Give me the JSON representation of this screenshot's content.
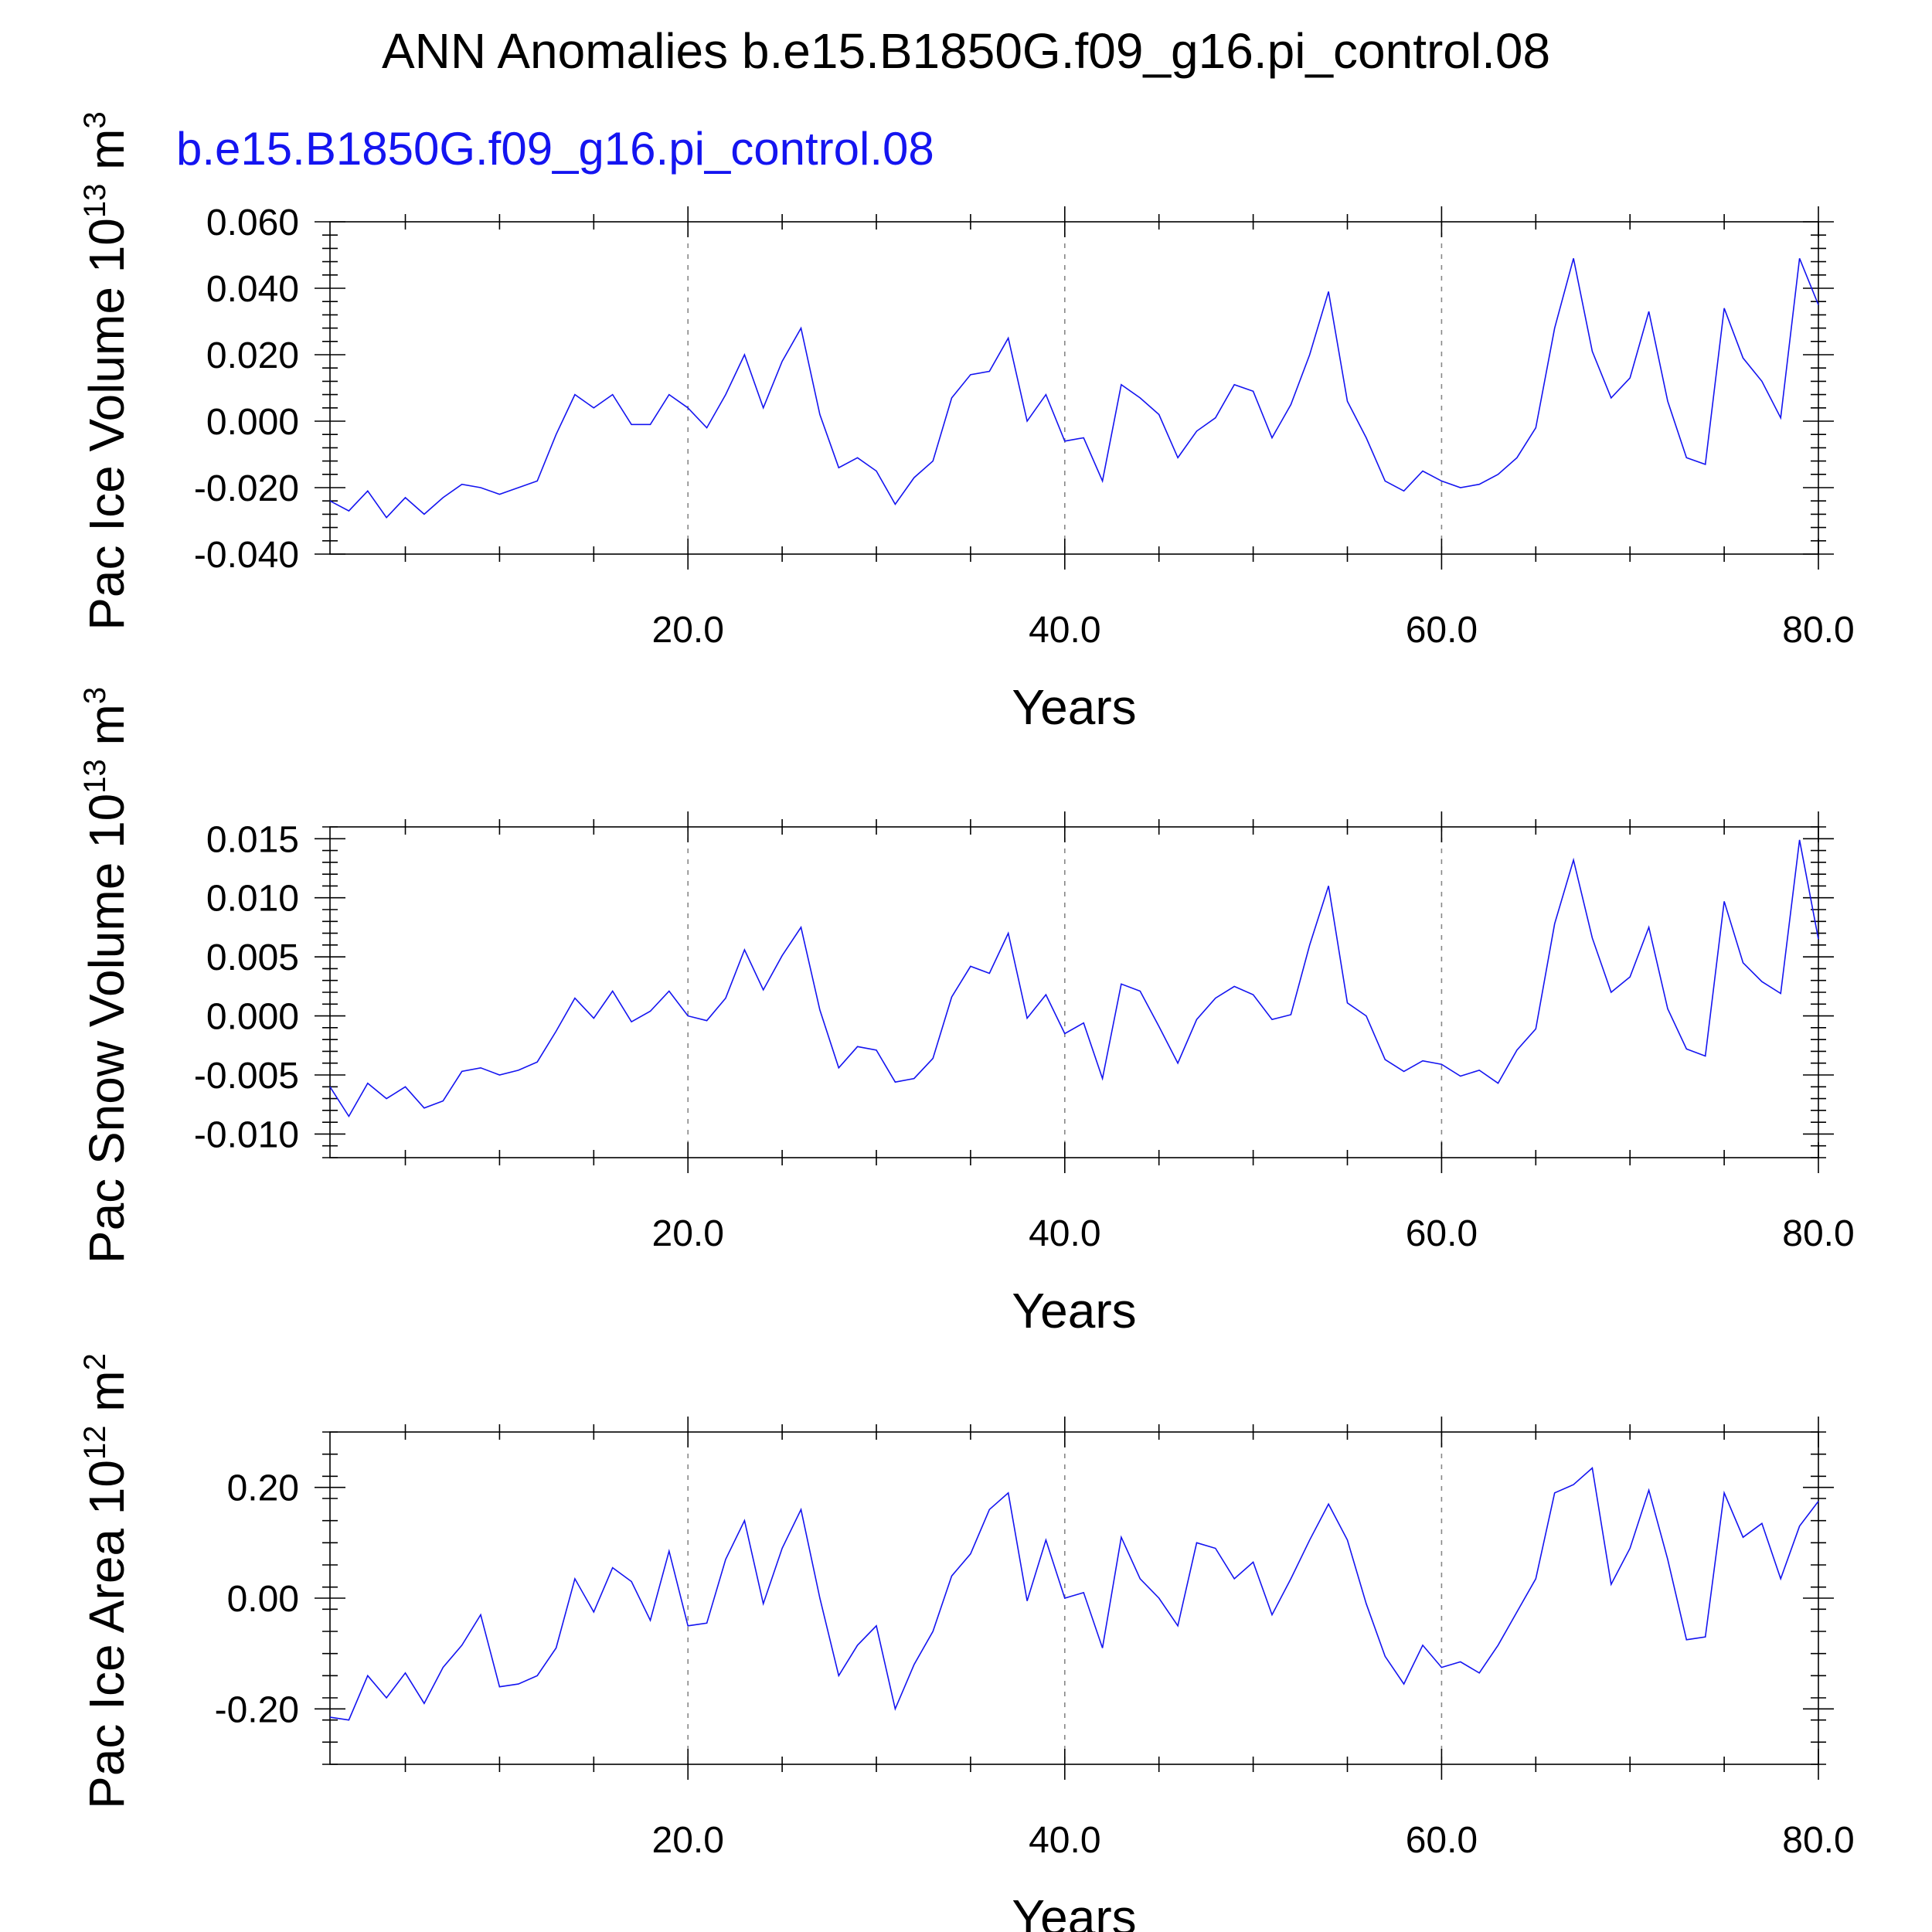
{
  "title": "ANN Anomalies b.e15.B1850G.f09_g16.pi_control.08",
  "subtitle": "b.e15.B1850G.f09_g16.pi_control.08",
  "colors": {
    "series": "#1414f0",
    "subtitle": "#1414f0",
    "axes": "#000000",
    "grid": "#888888"
  },
  "chart_data": [
    {
      "type": "line",
      "ylabel": "Pac Ice Volume 10",
      "ylabel_exp": "13",
      "ylabel_unit": " m",
      "ylabel_unit_exp": "3",
      "xlabel": "Years",
      "xlim": [
        1,
        80
      ],
      "ylim": [
        -0.04,
        0.06
      ],
      "x_ticks": [
        20,
        40,
        60,
        80
      ],
      "x_tick_labels": [
        "20.0",
        "40.0",
        "60.0",
        "80.0"
      ],
      "y_ticks": [
        -0.04,
        -0.02,
        0.0,
        0.02,
        0.04,
        0.06
      ],
      "y_tick_labels": [
        "-0.040",
        "-0.020",
        "0.000",
        "0.020",
        "0.040",
        "0.060"
      ],
      "grid_x": [
        20,
        40,
        60
      ],
      "series": [
        {
          "x_start": 1,
          "values": [
            -0.024,
            -0.027,
            -0.021,
            -0.029,
            -0.023,
            -0.028,
            -0.023,
            -0.019,
            -0.02,
            -0.022,
            -0.02,
            -0.018,
            -0.004,
            0.008,
            0.004,
            0.008,
            -0.001,
            -0.001,
            0.008,
            0.004,
            -0.002,
            0.008,
            0.02,
            0.004,
            0.018,
            0.028,
            0.002,
            -0.014,
            -0.011,
            -0.015,
            -0.025,
            -0.017,
            -0.012,
            0.007,
            0.014,
            0.015,
            0.025,
            0.0,
            0.008,
            -0.006,
            -0.005,
            -0.018,
            0.011,
            0.007,
            0.002,
            -0.011,
            -0.003,
            0.001,
            0.011,
            0.009,
            -0.005,
            0.005,
            0.02,
            0.039,
            0.006,
            -0.005,
            -0.018,
            -0.021,
            -0.015,
            -0.018,
            -0.02,
            -0.019,
            -0.016,
            -0.011,
            -0.002,
            0.028,
            0.049,
            0.021,
            0.007,
            0.013,
            0.033,
            0.006,
            -0.011,
            -0.013,
            0.034,
            0.019,
            0.012,
            0.001,
            0.049,
            0.035
          ]
        }
      ]
    },
    {
      "type": "line",
      "ylabel": "Pac Snow Volume 10",
      "ylabel_exp": "13",
      "ylabel_unit": " m",
      "ylabel_unit_exp": "3",
      "xlabel": "Years",
      "xlim": [
        1,
        80
      ],
      "ylim": [
        -0.012,
        0.016
      ],
      "x_ticks": [
        20,
        40,
        60,
        80
      ],
      "x_tick_labels": [
        "20.0",
        "40.0",
        "60.0",
        "80.0"
      ],
      "y_ticks": [
        -0.01,
        -0.005,
        0.0,
        0.005,
        0.01,
        0.015
      ],
      "y_tick_labels": [
        "-0.010",
        "-0.005",
        "0.000",
        "0.005",
        "0.010",
        "0.015"
      ],
      "grid_x": [
        20,
        40,
        60
      ],
      "series": [
        {
          "x_start": 1,
          "values": [
            -0.006,
            -0.0085,
            -0.0057,
            -0.007,
            -0.006,
            -0.0078,
            -0.0072,
            -0.0047,
            -0.0044,
            -0.005,
            -0.0046,
            -0.0039,
            -0.0013,
            0.0015,
            -0.0002,
            0.0021,
            -0.0005,
            0.0004,
            0.0021,
            0.0,
            -0.0004,
            0.0015,
            0.0056,
            0.0022,
            0.0051,
            0.0075,
            0.0005,
            -0.0044,
            -0.0026,
            -0.0029,
            -0.0056,
            -0.0053,
            -0.0036,
            0.0016,
            0.0042,
            0.0036,
            0.007,
            -0.0002,
            0.0018,
            -0.0015,
            -0.0006,
            -0.0053,
            0.0027,
            0.0021,
            -0.0009,
            -0.004,
            -0.0003,
            0.0015,
            0.0025,
            0.0018,
            -0.0003,
            0.0001,
            0.006,
            0.011,
            0.0011,
            0.0,
            -0.0037,
            -0.0047,
            -0.0038,
            -0.0041,
            -0.0051,
            -0.0046,
            -0.0057,
            -0.0029,
            -0.0011,
            0.0078,
            0.0132,
            0.0066,
            0.002,
            0.0033,
            0.0075,
            0.0006,
            -0.0028,
            -0.0034,
            0.0097,
            0.0045,
            0.0029,
            0.0019,
            0.0149,
            0.0065
          ]
        }
      ]
    },
    {
      "type": "line",
      "ylabel": "Pac Ice Area 10",
      "ylabel_exp": "12",
      "ylabel_unit": " m",
      "ylabel_unit_exp": "2",
      "xlabel": "Years",
      "xlim": [
        1,
        80
      ],
      "ylim": [
        -0.3,
        0.3
      ],
      "x_ticks": [
        20,
        40,
        60,
        80
      ],
      "x_tick_labels": [
        "20.0",
        "40.0",
        "60.0",
        "80.0"
      ],
      "y_ticks": [
        -0.2,
        0.0,
        0.2
      ],
      "y_tick_labels": [
        "-0.20",
        "0.00",
        "0.20"
      ],
      "grid_x": [
        20,
        40,
        60
      ],
      "series": [
        {
          "x_start": 1,
          "values": [
            -0.215,
            -0.22,
            -0.14,
            -0.18,
            -0.135,
            -0.19,
            -0.125,
            -0.085,
            -0.03,
            -0.16,
            -0.155,
            -0.14,
            -0.09,
            0.035,
            -0.025,
            0.055,
            0.03,
            -0.04,
            0.085,
            -0.05,
            -0.045,
            0.07,
            0.14,
            -0.01,
            0.09,
            0.16,
            0.0,
            -0.14,
            -0.085,
            -0.05,
            -0.2,
            -0.12,
            -0.06,
            0.04,
            0.08,
            0.16,
            0.19,
            -0.005,
            0.105,
            0.0,
            0.01,
            -0.09,
            0.11,
            0.035,
            0.0,
            -0.05,
            0.1,
            0.09,
            0.035,
            0.065,
            -0.03,
            0.035,
            0.105,
            0.17,
            0.105,
            -0.01,
            -0.105,
            -0.155,
            -0.085,
            -0.125,
            -0.115,
            -0.135,
            -0.085,
            -0.025,
            0.035,
            0.19,
            0.205,
            0.235,
            0.025,
            0.09,
            0.195,
            0.07,
            -0.075,
            -0.07,
            0.19,
            0.11,
            0.135,
            0.035,
            0.13,
            0.175
          ]
        }
      ]
    }
  ]
}
